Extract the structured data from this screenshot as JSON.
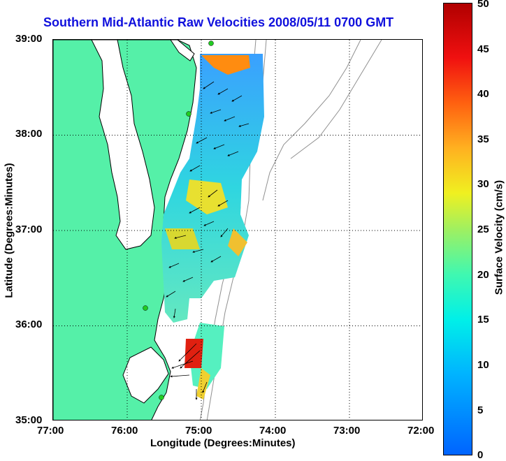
{
  "title": "Southern Mid-Atlantic Raw Velocities 2008/05/11 0700 GMT",
  "map": {
    "x_axis": {
      "label": "Longitude (Degrees:Minutes)",
      "ticks": [
        "77:00",
        "76:00",
        "75:00",
        "74:00",
        "73:00",
        "72:00"
      ],
      "range": [
        -77,
        -72
      ]
    },
    "y_axis": {
      "label": "Latitude (Degrees:Minutes)",
      "ticks": [
        "39:00",
        "38:00",
        "37:00",
        "36:00",
        "35:00"
      ],
      "range": [
        35,
        39
      ]
    },
    "grid": "dotted",
    "land_color": "#55f0a8",
    "coast_color": "#000000",
    "bathymetry_color": "#909090",
    "site_marker_color": "#22cc22"
  },
  "colorbar": {
    "label": "Surface Velocity (cm/s)",
    "ticks": [
      "0",
      "5",
      "10",
      "15",
      "20",
      "25",
      "30",
      "35",
      "40",
      "45",
      "50"
    ],
    "range": [
      0,
      50
    ],
    "colormap": "jet"
  }
}
